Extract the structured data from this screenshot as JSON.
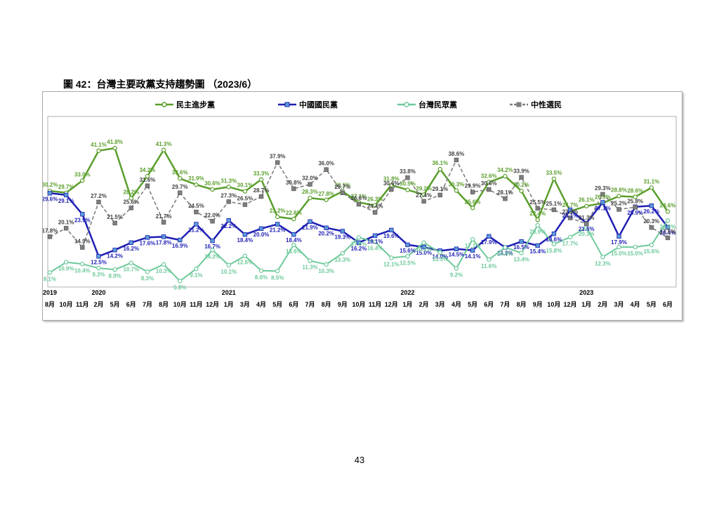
{
  "figure_title": "圖 42：台灣主要政黨支持趨勢圖 （2023/6）",
  "page_number": "43",
  "chart_data": {
    "type": "line",
    "title": "",
    "legend_position": "top",
    "grid": false,
    "ylim": [
      0,
      50
    ],
    "categories": [
      "8月",
      "10月",
      "11月",
      "2月",
      "5月",
      "6月",
      "7月",
      "8月",
      "10月",
      "11月",
      "12月",
      "1月",
      "3月",
      "4月",
      "5月",
      "6月",
      "7月",
      "8月",
      "9月",
      "10月",
      "11月",
      "12月",
      "1月",
      "2月",
      "3月",
      "4月",
      "5月",
      "6月",
      "7月",
      "8月",
      "9月",
      "10月",
      "12月",
      "1月",
      "2月",
      "3月",
      "4月",
      "5月",
      "6月"
    ],
    "year_labels": [
      {
        "label": "2019",
        "index": 0
      },
      {
        "label": "2020",
        "index": 3
      },
      {
        "label": "2021",
        "index": 11
      },
      {
        "label": "2022",
        "index": 22
      },
      {
        "label": "2023",
        "index": 33
      }
    ],
    "series": [
      {
        "name": "民主進步黨",
        "color": "#5a9e2b",
        "values": [
          30.2,
          29.7,
          33.0,
          41.1,
          41.8,
          28.2,
          34.2,
          41.3,
          33.6,
          31.9,
          30.6,
          31.3,
          30.1,
          33.3,
          23.2,
          22.6,
          28.3,
          27.8,
          30.1,
          27.1,
          26.3,
          31.8,
          30.5,
          29.2,
          36.1,
          30.3,
          25.6,
          32.6,
          34.2,
          30.2,
          22.4,
          33.5,
          24.7,
          26.1,
          26.9,
          28.8,
          28.6,
          31.1,
          24.6
        ]
      },
      {
        "name": "中國國民黨",
        "color": "#1f1fb4",
        "values": [
          29.6,
          29.1,
          23.9,
          12.5,
          14.2,
          16.2,
          17.6,
          17.8,
          16.9,
          21.2,
          16.7,
          22.2,
          18.4,
          20.0,
          21.2,
          18.4,
          21.9,
          20.2,
          19.3,
          16.2,
          18.1,
          19.6,
          15.6,
          15.0,
          14.0,
          14.5,
          14.1,
          17.9,
          14.9,
          16.5,
          15.4,
          18.6,
          25.1,
          21.5,
          27.1,
          17.9,
          25.9,
          26.2,
          20.4
        ]
      },
      {
        "name": "台灣民眾黨",
        "color": "#6dc99a",
        "values": [
          8.1,
          10.9,
          10.4,
          9.3,
          8.9,
          10.7,
          8.3,
          10.3,
          5.8,
          9.1,
          14.2,
          10.1,
          12.6,
          8.6,
          8.5,
          15.6,
          11.3,
          10.3,
          13.3,
          17.6,
          16.4,
          12.1,
          12.5,
          16.2,
          13.5,
          9.2,
          17.1,
          11.6,
          14.9,
          13.4,
          20.9,
          15.8,
          17.7,
          20.3,
          12.3,
          15.0,
          15.0,
          15.6,
          22.2
        ]
      },
      {
        "name": "中性選民",
        "color": "#7f7f7f",
        "values": [
          17.8,
          20.1,
          14.9,
          27.2,
          21.5,
          25.6,
          31.6,
          21.7,
          29.7,
          24.5,
          22.0,
          27.3,
          26.5,
          28.7,
          37.9,
          30.8,
          32.0,
          36.0,
          29.7,
          26.6,
          24.4,
          30.6,
          33.8,
          27.4,
          29.1,
          38.6,
          29.9,
          30.6,
          28.1,
          33.9,
          25.5,
          25.1,
          22.9,
          21.3,
          29.3,
          25.2,
          25.8,
          20.3,
          17.5
        ]
      }
    ]
  }
}
